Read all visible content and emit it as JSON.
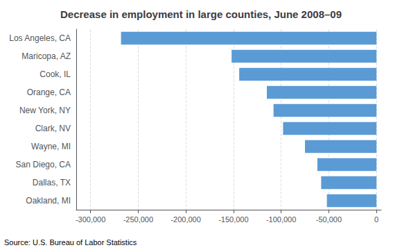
{
  "chart_data": {
    "type": "bar",
    "orientation": "horizontal",
    "title": "Decrease in employment in large counties, June 2008–09",
    "categories": [
      "Los Angeles, CA",
      "Maricopa, AZ",
      "Cook, IL",
      "Orange, CA",
      "New York, NY",
      "Clark, NV",
      "Wayne, MI",
      "San Diego, CA",
      "Dallas, TX",
      "Oakland, MI"
    ],
    "values": [
      -268000,
      -152000,
      -144000,
      -115000,
      -108000,
      -98000,
      -75000,
      -62000,
      -58000,
      -52000
    ],
    "color": "#5b9bd5",
    "xlim": [
      -315000,
      5000
    ],
    "xticks": [
      {
        "value": -300000,
        "label": "-300,000"
      },
      {
        "value": -250000,
        "label": "-250,000"
      },
      {
        "value": -200000,
        "label": "-200,000"
      },
      {
        "value": -150000,
        "label": "-150,000"
      },
      {
        "value": -100000,
        "label": "-100,000"
      },
      {
        "value": -50000,
        "label": "-50,000"
      },
      0
    ],
    "grid": true,
    "annotations": [
      "Source: U.S. Bureau of Labor Statistics"
    ]
  }
}
